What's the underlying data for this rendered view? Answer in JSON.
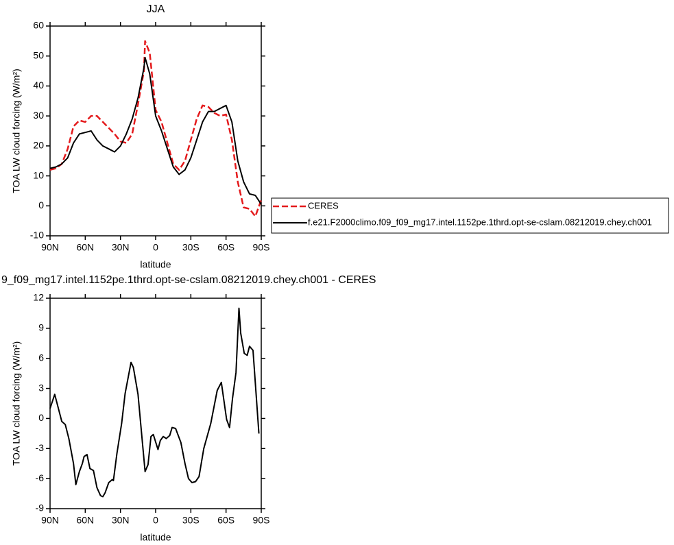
{
  "chart_data": [
    {
      "type": "line",
      "title": "JJA",
      "xlabel": "latitude",
      "ylabel": "TOA LW cloud forcing (W/m²)",
      "x": [
        90,
        85,
        80,
        75,
        70,
        65,
        60,
        55,
        50,
        45,
        40,
        35,
        30,
        25,
        20,
        15,
        10,
        9,
        5,
        0,
        -5,
        -10,
        -15,
        -20,
        -25,
        -30,
        -35,
        -40,
        -45,
        -50,
        -55,
        -60,
        -65,
        -70,
        -75,
        -80,
        -85,
        -90
      ],
      "series": [
        {
          "name": "CERES",
          "color": "#e41a1c",
          "dashed": true,
          "values": [
            12,
            12.5,
            14,
            19,
            26.5,
            28.5,
            28,
            30,
            30,
            28,
            26,
            24,
            21.5,
            21,
            24,
            34,
            45,
            55,
            51,
            32,
            28,
            21,
            14,
            12,
            15,
            22,
            29,
            33.5,
            33,
            31,
            30,
            30.5,
            22,
            8,
            -0.5,
            -1,
            -3.5,
            2
          ]
        },
        {
          "name": "f.e21.F2000climo.f09_f09_mg17.intel.1152pe.1thrd.opt-se-cslam.08212019.chey.ch001",
          "color": "#000000",
          "dashed": false,
          "values": [
            12.5,
            13,
            14,
            16,
            21,
            24,
            24.5,
            25,
            22,
            20,
            19,
            18,
            20,
            24,
            29,
            36,
            46,
            49.5,
            44,
            30,
            25,
            19,
            13,
            10.5,
            12,
            16,
            22,
            28,
            31.5,
            31.5,
            32.5,
            33.5,
            28,
            15,
            8,
            4,
            3.5,
            0.5
          ]
        }
      ],
      "xlim": [
        90,
        -90
      ],
      "xticks": [
        {
          "value": 90,
          "label": "90N"
        },
        {
          "value": 60,
          "label": "60N"
        },
        {
          "value": 30,
          "label": "30N"
        },
        0,
        {
          "value": -30,
          "label": "30S"
        },
        {
          "value": -60,
          "label": "60S"
        },
        {
          "value": -90,
          "label": "90S"
        }
      ],
      "ylim": [
        -10,
        60
      ],
      "yticks": [
        -10,
        0,
        10,
        20,
        30,
        40,
        50,
        60
      ],
      "legend": "right"
    },
    {
      "type": "line",
      "title": "9_f09_mg17.intel.1152pe.1thrd.opt-se-cslam.08212019.chey.ch001 - CERES",
      "xlabel": "latitude",
      "ylabel": "TOA LW cloud forcing (W/m²)",
      "x": [
        90,
        86,
        80,
        77,
        74,
        70,
        68,
        65,
        62.5,
        61,
        58.5,
        56,
        53,
        50,
        47,
        45,
        43,
        40,
        37,
        36,
        33,
        29,
        26,
        21,
        19,
        15,
        12,
        9,
        6.5,
        4,
        2,
        -2,
        -4,
        -6.5,
        -9,
        -12,
        -14,
        -17,
        -21.5,
        -25,
        -28,
        -31,
        -34,
        -37,
        -41,
        -47,
        -52.5,
        -56,
        -60.5,
        -63,
        -65.5,
        -68.5,
        -71,
        -72.5,
        -75.5,
        -78,
        -80,
        -83,
        -88
      ],
      "series": [
        {
          "color": "#000000",
          "dashed": false,
          "values": [
            1,
            2.4,
            -0.3,
            -0.6,
            -2,
            -4.5,
            -6.6,
            -5.3,
            -4.5,
            -3.8,
            -3.6,
            -5,
            -5.2,
            -6.9,
            -7.7,
            -7.8,
            -7.4,
            -6.4,
            -6.1,
            -6.2,
            -3.5,
            -0.5,
            2.5,
            5.6,
            5.1,
            2.4,
            -1.5,
            -5.3,
            -4.6,
            -1.8,
            -1.6,
            -3.1,
            -2.2,
            -1.8,
            -2,
            -1.7,
            -0.9,
            -1,
            -2.4,
            -4.5,
            -6,
            -6.4,
            -6.3,
            -5.8,
            -3,
            -0.5,
            2.8,
            3.6,
            -0.1,
            -0.9,
            2,
            4.6,
            11,
            8.5,
            6.5,
            6.3,
            7.2,
            6.8,
            -1.5
          ]
        }
      ],
      "xlim": [
        90,
        -90
      ],
      "xticks": [
        {
          "value": 90,
          "label": "90N"
        },
        {
          "value": 60,
          "label": "60N"
        },
        {
          "value": 30,
          "label": "30N"
        },
        0,
        {
          "value": -30,
          "label": "30S"
        },
        {
          "value": -60,
          "label": "60S"
        },
        {
          "value": -90,
          "label": "90S"
        }
      ],
      "ylim": [
        -9,
        12
      ],
      "yticks": [
        -9,
        -6,
        -3,
        0,
        3,
        6,
        9,
        12
      ]
    }
  ]
}
